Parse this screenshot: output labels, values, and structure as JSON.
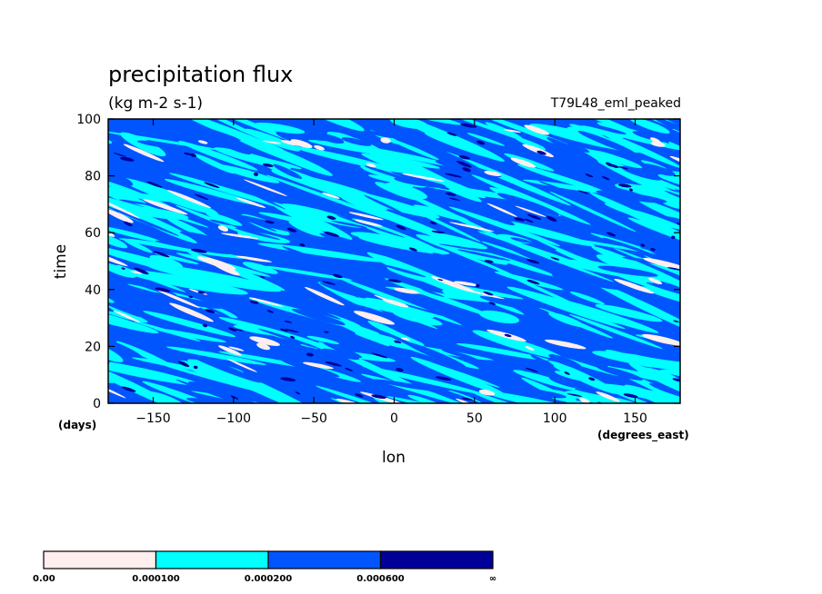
{
  "chart_data": {
    "type": "heatmap",
    "title": "precipitation flux",
    "units": "(kg m-2 s-1)",
    "run_label": "T79L48_eml_peaked",
    "xlabel": "lon",
    "xunits": "(degrees_east)",
    "ylabel": "time",
    "yunits": "(days)",
    "xlim": [
      -178,
      178
    ],
    "ylim": [
      0,
      100
    ],
    "x_ticks": [
      -150,
      -100,
      -50,
      0,
      50,
      100,
      150
    ],
    "x_tick_labels": [
      "−150",
      "−100",
      "−50",
      "0",
      "50",
      "100",
      "150"
    ],
    "y_ticks": [
      0,
      20,
      40,
      60,
      80,
      100
    ],
    "y_tick_labels": [
      "0",
      "20",
      "40",
      "60",
      "80",
      "100"
    ],
    "colorbar": {
      "levels": [
        "0.00",
        "0.000100",
        "0.000200",
        "0.000600",
        "∞"
      ],
      "colors": [
        "#ffeeee",
        "#00ffff",
        "#0055ff",
        "#000099"
      ]
    }
  }
}
